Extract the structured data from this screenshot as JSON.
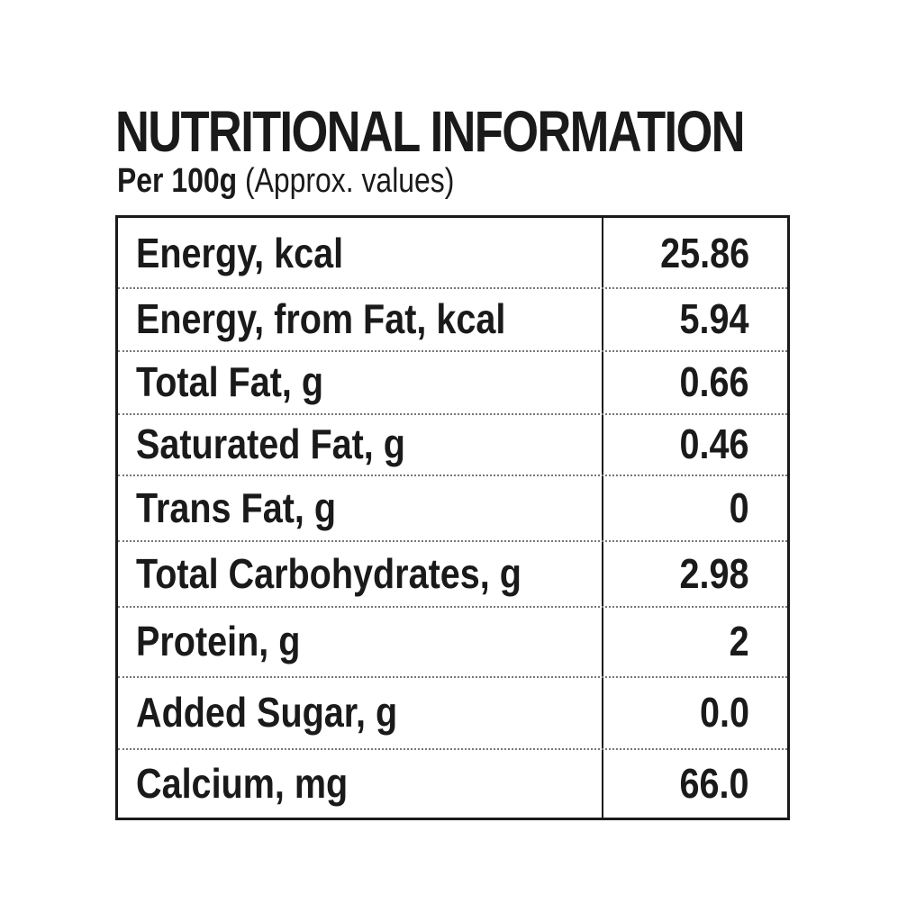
{
  "header": {
    "title": "NUTRITIONAL INFORMATION",
    "subtitle_bold": "Per 100g",
    "subtitle_light": "(Approx. values)"
  },
  "rows": [
    {
      "label": "Energy, kcal",
      "value": "25.86"
    },
    {
      "label": "Energy, from Fat, kcal",
      "value": "5.94"
    },
    {
      "label": "Total Fat, g",
      "value": "0.66"
    },
    {
      "label": "Saturated Fat, g",
      "value": "0.46"
    },
    {
      "label": "Trans Fat, g",
      "value": "0"
    },
    {
      "label": "Total Carbohydrates, g",
      "value": "2.98"
    },
    {
      "label": "Protein, g",
      "value": "2"
    },
    {
      "label": "Added Sugar, g",
      "value": "0.0"
    },
    {
      "label": "Calcium, mg",
      "value": "66.0"
    }
  ]
}
